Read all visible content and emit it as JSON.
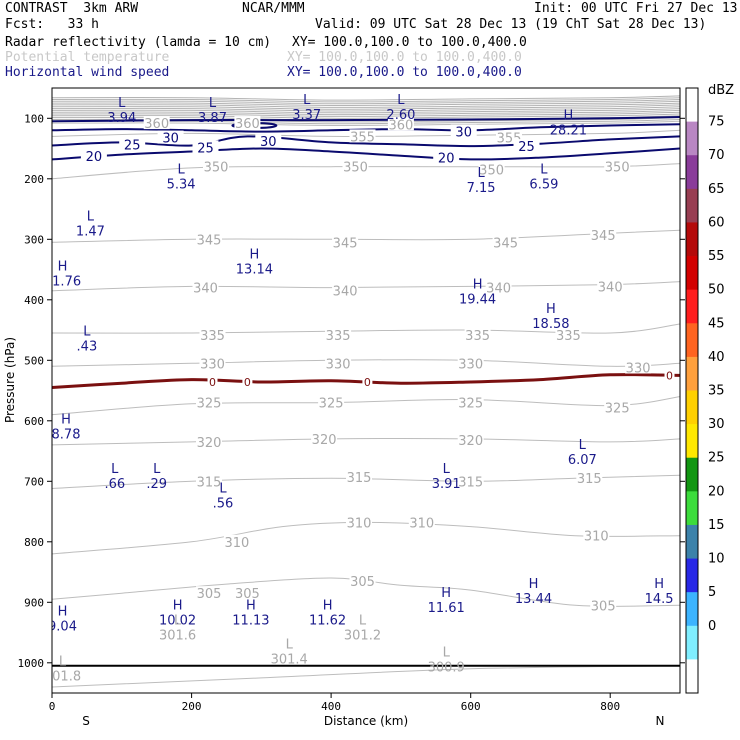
{
  "header": {
    "model": "CONTRAST  3km ARW",
    "org": "NCAR/MMM",
    "init": "Init: 00 UTC Fri 27 Dec 13",
    "fcst": "Fcst:   33 h",
    "valid": "Valid: 09 UTC Sat 28 Dec 13 (19 ChT Sat 28 Dec 13)",
    "fields": [
      {
        "name": "Radar reflectivity (lamda = 10 cm)",
        "xy": "XY= 100.0,100.0 to 100.0,400.0",
        "color": "#000000"
      },
      {
        "name": "Potential temperature",
        "xy": "XY= 100.0,100.0 to 100.0,400.0",
        "color": "#c8c8c8"
      },
      {
        "name": "Horizontal wind speed",
        "xy": "XY= 100.0,100.0 to 100.0,400.0",
        "color": "#1a1a8a"
      }
    ]
  },
  "chart_data": {
    "type": "cross-section",
    "xlabel": "Distance (km)",
    "ylabel": "Pressure (hPa)",
    "xlim": [
      0,
      900
    ],
    "ylim": [
      1050,
      50
    ],
    "x_ticks": [
      0,
      200,
      400,
      600,
      800
    ],
    "y_ticks": [
      100,
      200,
      300,
      400,
      500,
      600,
      700,
      800,
      900,
      1000
    ],
    "x_end_labels": {
      "left": "S",
      "right": "N"
    },
    "colorbar": {
      "unit": "dBZ",
      "labels": [
        "75",
        "70",
        "65",
        "60",
        "55",
        "50",
        "45",
        "40",
        "35",
        "30",
        "25",
        "20",
        "15",
        "10",
        "5",
        "0"
      ],
      "colors": [
        "#ffffff",
        "#b987c3",
        "#8a3c9a",
        "#983e52",
        "#b40a0a",
        "#d20000",
        "#ff1e1e",
        "#ff6420",
        "#ffa03c",
        "#ffd000",
        "#ffe800",
        "#129612",
        "#3cdc3c",
        "#3c82aa",
        "#2828e6",
        "#3cb4ff",
        "#7feeff",
        "#ffffff"
      ]
    },
    "theta_isolines": [
      {
        "value": 300,
        "points": [
          [
            0,
            1040
          ],
          [
            300,
            1025
          ],
          [
            600,
            1010
          ],
          [
            900,
            1005
          ]
        ]
      },
      {
        "value": 305,
        "points": [
          [
            0,
            895
          ],
          [
            100,
            885
          ],
          [
            250,
            870
          ],
          [
            400,
            860
          ],
          [
            500,
            872
          ],
          [
            600,
            880
          ],
          [
            750,
            905
          ],
          [
            900,
            905
          ]
        ]
      },
      {
        "value": 310,
        "points": [
          [
            0,
            820
          ],
          [
            200,
            800
          ],
          [
            330,
            775
          ],
          [
            450,
            768
          ],
          [
            600,
            775
          ],
          [
            750,
            790
          ],
          [
            900,
            790
          ]
        ]
      },
      {
        "value": 315,
        "points": [
          [
            0,
            712
          ],
          [
            200,
            700
          ],
          [
            400,
            695
          ],
          [
            600,
            700
          ],
          [
            750,
            695
          ],
          [
            900,
            690
          ]
        ]
      },
      {
        "value": 320,
        "points": [
          [
            0,
            640
          ],
          [
            200,
            635
          ],
          [
            400,
            630
          ],
          [
            600,
            630
          ],
          [
            800,
            635
          ],
          [
            900,
            630
          ]
        ]
      },
      {
        "value": 325,
        "points": [
          [
            0,
            590
          ],
          [
            200,
            572
          ],
          [
            400,
            570
          ],
          [
            600,
            565
          ],
          [
            800,
            575
          ],
          [
            900,
            560
          ]
        ]
      },
      {
        "value": 330,
        "points": [
          [
            0,
            510
          ],
          [
            200,
            505
          ],
          [
            400,
            500
          ],
          [
            600,
            500
          ],
          [
            800,
            510
          ],
          [
            900,
            505
          ]
        ]
      },
      {
        "value": 335,
        "points": [
          [
            0,
            455
          ],
          [
            200,
            455
          ],
          [
            400,
            452
          ],
          [
            600,
            450
          ],
          [
            800,
            455
          ],
          [
            900,
            440
          ]
        ]
      },
      {
        "value": 340,
        "points": [
          [
            0,
            385
          ],
          [
            200,
            378
          ],
          [
            400,
            380
          ],
          [
            600,
            378
          ],
          [
            800,
            375
          ],
          [
            900,
            370
          ]
        ]
      },
      {
        "value": 345,
        "points": [
          [
            0,
            305
          ],
          [
            200,
            300
          ],
          [
            400,
            300
          ],
          [
            600,
            300
          ],
          [
            800,
            290
          ],
          [
            900,
            285
          ]
        ]
      },
      {
        "value": 350,
        "points": [
          [
            0,
            200
          ],
          [
            200,
            182
          ],
          [
            400,
            180
          ],
          [
            600,
            180
          ],
          [
            800,
            180
          ],
          [
            900,
            175
          ]
        ]
      },
      {
        "value": 355,
        "points": [
          [
            0,
            130
          ],
          [
            200,
            125
          ],
          [
            400,
            130
          ],
          [
            600,
            128
          ],
          [
            800,
            125
          ],
          [
            900,
            120
          ]
        ]
      },
      {
        "value": 360,
        "points": [
          [
            0,
            108
          ],
          [
            200,
            108
          ],
          [
            400,
            112
          ],
          [
            600,
            110
          ],
          [
            800,
            108
          ],
          [
            900,
            105
          ]
        ]
      }
    ],
    "theta_labels": [
      {
        "text": "305",
        "x": 225,
        "y": 885
      },
      {
        "text": "305",
        "x": 280,
        "y": 885
      },
      {
        "text": "305",
        "x": 445,
        "y": 865
      },
      {
        "text": "305",
        "x": 790,
        "y": 905
      },
      {
        "text": "310",
        "x": 265,
        "y": 800
      },
      {
        "text": "310",
        "x": 440,
        "y": 768
      },
      {
        "text": "310",
        "x": 530,
        "y": 768
      },
      {
        "text": "310",
        "x": 780,
        "y": 790
      },
      {
        "text": "315",
        "x": 225,
        "y": 700
      },
      {
        "text": "315",
        "x": 440,
        "y": 693
      },
      {
        "text": "315",
        "x": 600,
        "y": 700
      },
      {
        "text": "315",
        "x": 770,
        "y": 695
      },
      {
        "text": "320",
        "x": 225,
        "y": 635
      },
      {
        "text": "320",
        "x": 390,
        "y": 630
      },
      {
        "text": "320",
        "x": 600,
        "y": 632
      },
      {
        "text": "325",
        "x": 225,
        "y": 570
      },
      {
        "text": "325",
        "x": 400,
        "y": 570
      },
      {
        "text": "325",
        "x": 600,
        "y": 570
      },
      {
        "text": "325",
        "x": 810,
        "y": 578
      },
      {
        "text": "330",
        "x": 230,
        "y": 505
      },
      {
        "text": "330",
        "x": 410,
        "y": 505
      },
      {
        "text": "330",
        "x": 600,
        "y": 505
      },
      {
        "text": "330",
        "x": 840,
        "y": 512
      },
      {
        "text": "335",
        "x": 230,
        "y": 458
      },
      {
        "text": "335",
        "x": 410,
        "y": 458
      },
      {
        "text": "335",
        "x": 610,
        "y": 458
      },
      {
        "text": "335",
        "x": 740,
        "y": 458
      },
      {
        "text": "340",
        "x": 220,
        "y": 380
      },
      {
        "text": "340",
        "x": 420,
        "y": 385
      },
      {
        "text": "340",
        "x": 640,
        "y": 380
      },
      {
        "text": "340",
        "x": 800,
        "y": 378
      },
      {
        "text": "345",
        "x": 225,
        "y": 300
      },
      {
        "text": "345",
        "x": 420,
        "y": 305
      },
      {
        "text": "345",
        "x": 650,
        "y": 305
      },
      {
        "text": "345",
        "x": 790,
        "y": 293
      },
      {
        "text": "350",
        "x": 235,
        "y": 180
      },
      {
        "text": "350",
        "x": 435,
        "y": 180
      },
      {
        "text": "350",
        "x": 630,
        "y": 185
      },
      {
        "text": "350",
        "x": 810,
        "y": 180
      },
      {
        "text": "355",
        "x": 445,
        "y": 130
      },
      {
        "text": "355",
        "x": 655,
        "y": 132
      },
      {
        "text": "360",
        "x": 150,
        "y": 108
      },
      {
        "text": "360",
        "x": 280,
        "y": 108
      },
      {
        "text": "360",
        "x": 500,
        "y": 110
      }
    ],
    "wind_isotachs": [
      {
        "value": 20,
        "points": [
          [
            0,
            168
          ],
          [
            100,
            160
          ],
          [
            200,
            155
          ],
          [
            300,
            150
          ],
          [
            400,
            155
          ],
          [
            500,
            162
          ],
          [
            600,
            168
          ],
          [
            700,
            165
          ],
          [
            800,
            158
          ],
          [
            900,
            150
          ]
        ]
      },
      {
        "value": 25,
        "points": [
          [
            0,
            145
          ],
          [
            100,
            140
          ],
          [
            200,
            145
          ],
          [
            280,
            130
          ],
          [
            400,
            140
          ],
          [
            500,
            143
          ],
          [
            600,
            146
          ],
          [
            700,
            142
          ],
          [
            800,
            135
          ],
          [
            900,
            130
          ]
        ]
      },
      {
        "value": 30,
        "points": [
          [
            0,
            120
          ],
          [
            100,
            118
          ],
          [
            200,
            120
          ],
          [
            300,
            122
          ],
          [
            400,
            120
          ],
          [
            500,
            118
          ],
          [
            600,
            120
          ],
          [
            700,
            115
          ],
          [
            800,
            112
          ],
          [
            900,
            110
          ]
        ]
      },
      {
        "value": 35,
        "points": [
          [
            0,
            105
          ],
          [
            200,
            103
          ],
          [
            400,
            103
          ],
          [
            600,
            102
          ],
          [
            800,
            100
          ],
          [
            900,
            98
          ]
        ]
      }
    ],
    "wind_labels": [
      {
        "text": "20",
        "x": 60,
        "y": 162
      },
      {
        "text": "20",
        "x": 565,
        "y": 165
      },
      {
        "text": "25",
        "x": 115,
        "y": 143
      },
      {
        "text": "25",
        "x": 220,
        "y": 148
      },
      {
        "text": "25",
        "x": 680,
        "y": 146
      },
      {
        "text": "30",
        "x": 170,
        "y": 132
      },
      {
        "text": "30",
        "x": 310,
        "y": 138
      },
      {
        "text": "30",
        "x": 590,
        "y": 122
      }
    ],
    "freezing_level": {
      "value": 0,
      "points": [
        [
          0,
          545
        ],
        [
          100,
          538
        ],
        [
          200,
          532
        ],
        [
          300,
          536
        ],
        [
          400,
          534
        ],
        [
          500,
          538
        ],
        [
          600,
          536
        ],
        [
          700,
          532
        ],
        [
          800,
          524
        ],
        [
          900,
          525
        ]
      ],
      "color": "#7a1010"
    },
    "freezing_labels": [
      {
        "text": "0",
        "x": 230,
        "y": 536
      },
      {
        "text": "0",
        "x": 280,
        "y": 536
      },
      {
        "text": "0",
        "x": 452,
        "y": 536
      },
      {
        "text": "0",
        "x": 885,
        "y": 525
      }
    ],
    "wind_extrema": [
      {
        "type": "L",
        "value": "3.94",
        "x": 100,
        "y": 85
      },
      {
        "type": "L",
        "value": "3.87",
        "x": 230,
        "y": 85
      },
      {
        "type": "L",
        "value": "3.37",
        "x": 365,
        "y": 80
      },
      {
        "type": "L",
        "value": "2.60",
        "x": 500,
        "y": 80
      },
      {
        "type": "H",
        "value": "28.21",
        "x": 740,
        "y": 105
      },
      {
        "type": "L",
        "value": "5.34",
        "x": 185,
        "y": 195
      },
      {
        "type": "L",
        "value": "7.15",
        "x": 615,
        "y": 200
      },
      {
        "type": "L",
        "value": "6.59",
        "x": 705,
        "y": 195
      },
      {
        "type": "L",
        "value": "1.47",
        "x": 55,
        "y": 272
      },
      {
        "type": "H",
        "value": "13.14",
        "x": 290,
        "y": 335
      },
      {
        "type": "H",
        "value": "11.76",
        "x": 15,
        "y": 355
      },
      {
        "type": "H",
        "value": "19.44",
        "x": 610,
        "y": 385
      },
      {
        "type": "H",
        "value": "18.58",
        "x": 715,
        "y": 425
      },
      {
        "type": "L",
        "value": ".43",
        "x": 50,
        "y": 462
      },
      {
        "type": "H",
        "value": "8.78",
        "x": 20,
        "y": 608
      },
      {
        "type": "L",
        "value": "6.07",
        "x": 760,
        "y": 650
      },
      {
        "type": "L",
        "value": ".66",
        "x": 90,
        "y": 690
      },
      {
        "type": "L",
        "value": ".29",
        "x": 150,
        "y": 690
      },
      {
        "type": "L",
        "value": "3.91",
        "x": 565,
        "y": 690
      },
      {
        "type": "L",
        "value": ".56",
        "x": 245,
        "y": 722
      },
      {
        "type": "H",
        "value": "13.44",
        "x": 690,
        "y": 880
      },
      {
        "type": "H",
        "value": "14.5",
        "x": 870,
        "y": 880
      },
      {
        "type": "H",
        "value": "11.61",
        "x": 565,
        "y": 895
      },
      {
        "type": "H",
        "value": "9.04",
        "x": 15,
        "y": 925
      },
      {
        "type": "H",
        "value": "10.02",
        "x": 180,
        "y": 915
      },
      {
        "type": "H",
        "value": "11.13",
        "x": 285,
        "y": 915
      },
      {
        "type": "H",
        "value": "11.62",
        "x": 395,
        "y": 915
      }
    ],
    "theta_extrema": [
      {
        "type": "L",
        "value": "301.6",
        "x": 180,
        "y": 940
      },
      {
        "type": "L",
        "value": "301.2",
        "x": 445,
        "y": 940
      },
      {
        "type": "L",
        "value": "301.4",
        "x": 340,
        "y": 980
      },
      {
        "type": "L",
        "value": "300.9",
        "x": 565,
        "y": 993
      },
      {
        "type": "L",
        "value": "301.8",
        "x": 15,
        "y": 1008
      }
    ]
  }
}
